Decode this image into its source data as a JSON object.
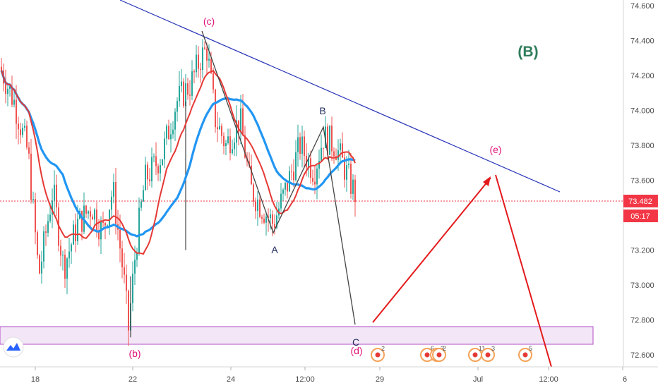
{
  "chart_data": {
    "type": "candlestick",
    "y_axis": {
      "ticks": [
        "74.600",
        "74.400",
        "74.200",
        "74.000",
        "73.800",
        "73.600",
        "73.400",
        "73.200",
        "73.000",
        "72.800",
        "72.600"
      ],
      "range": [
        72.55,
        74.63
      ]
    },
    "x_axis": {
      "ticks": [
        "18",
        "22",
        "24",
        "12:00",
        "29",
        "Jul",
        "12:00",
        "6"
      ]
    },
    "price_badge": {
      "value": "73.482",
      "countdown": "05:17",
      "color": "#f23645"
    },
    "last_price": 73.482,
    "wave_labels": {
      "wave_b_big": "(B)",
      "c_paren": "(c)",
      "b_paren": "(b)",
      "d_paren": "(d)",
      "e_paren": "(e)",
      "A": "A",
      "B": "B",
      "C": "C"
    },
    "event_markers": [
      {
        "label": "2"
      },
      {
        "label": "6"
      },
      {
        "label": "3"
      },
      {
        "label": "2"
      },
      {
        "label": "11"
      },
      {
        "label": "3"
      },
      {
        "label": "5"
      }
    ],
    "moving_averages": [
      {
        "color": "#2196f3"
      },
      {
        "color": "#e53935"
      }
    ],
    "colors": {
      "up": "#26a69a",
      "down": "#ef5350",
      "trendline": "#2633b8",
      "projection": "#e31a1c",
      "wave_path": "#444444",
      "zone_border": "#b04fc4",
      "zone_fill": "#f3e6f6",
      "label_pink": "#e0137a",
      "label_green": "#2e7d5b",
      "label_navy": "#1f2a5c"
    }
  }
}
